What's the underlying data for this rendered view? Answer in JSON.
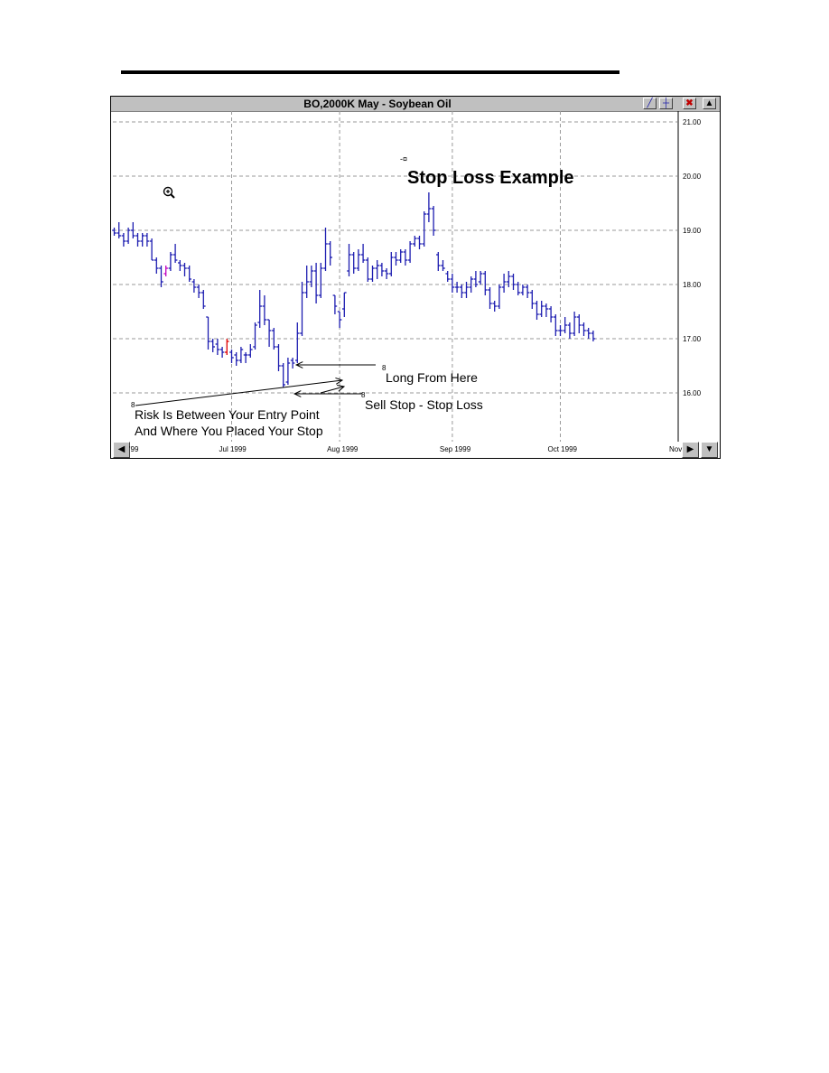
{
  "chart_data": {
    "type": "ohlc",
    "window_title": "BO,2000K  May - Soybean Oil",
    "title": "Stop Loss Example",
    "xlabel": "",
    "ylabel": "",
    "ylim": [
      15.1,
      21.2
    ],
    "y_ticks": [
      "21.00",
      "20.00",
      "19.00",
      "18.00",
      "17.00",
      "16.00"
    ],
    "x_ticks": [
      {
        "label": "'99",
        "bar": 0
      },
      {
        "label": "Jul 1999",
        "bar": 25
      },
      {
        "label": "Aug 1999",
        "bar": 48
      },
      {
        "label": "Sep 1999",
        "bar": 72
      },
      {
        "label": "Oct 1999",
        "bar": 95
      },
      {
        "label": "Nov",
        "bar": 119
      }
    ],
    "grid": true,
    "series": [
      {
        "bars": [
          [
            19.0,
            19.05,
            18.9,
            18.95
          ],
          [
            18.95,
            19.15,
            18.85,
            18.9
          ],
          [
            18.9,
            18.95,
            18.7,
            18.8
          ],
          [
            18.8,
            19.05,
            18.75,
            19.0
          ],
          [
            19.0,
            19.15,
            18.85,
            18.9
          ],
          [
            18.9,
            18.95,
            18.7,
            18.8
          ],
          [
            18.8,
            18.95,
            18.7,
            18.9
          ],
          [
            18.9,
            18.95,
            18.7,
            18.8
          ],
          [
            18.8,
            18.85,
            18.45,
            18.45
          ],
          [
            18.45,
            18.5,
            18.2,
            18.3
          ],
          [
            18.3,
            18.35,
            17.95,
            18.05
          ],
          [
            18.2,
            18.35,
            18.15,
            18.3
          ],
          [
            18.3,
            18.6,
            18.25,
            18.55
          ],
          [
            18.55,
            18.75,
            18.4,
            18.45
          ],
          [
            18.4,
            18.45,
            18.25,
            18.35
          ],
          [
            18.35,
            18.4,
            18.15,
            18.3
          ],
          [
            18.3,
            18.35,
            18.05,
            18.1
          ],
          [
            18.05,
            18.1,
            17.85,
            17.95
          ],
          [
            17.95,
            18.0,
            17.75,
            17.85
          ],
          [
            17.85,
            17.9,
            17.55,
            17.6
          ],
          [
            17.4,
            17.4,
            16.8,
            16.95
          ],
          [
            16.95,
            17.0,
            16.75,
            16.85
          ],
          [
            16.9,
            17.0,
            16.7,
            16.8
          ],
          [
            16.8,
            16.85,
            16.65,
            16.75
          ],
          [
            16.75,
            17.0,
            16.7,
            16.95
          ],
          [
            16.75,
            16.8,
            16.55,
            16.65
          ],
          [
            16.7,
            16.75,
            16.5,
            16.6
          ],
          [
            16.6,
            16.85,
            16.55,
            16.8
          ],
          [
            16.7,
            16.75,
            16.55,
            16.7
          ],
          [
            16.7,
            16.9,
            16.65,
            16.8
          ],
          [
            16.85,
            17.3,
            16.8,
            17.25
          ],
          [
            17.3,
            17.9,
            17.2,
            17.6
          ],
          [
            17.6,
            17.8,
            17.25,
            17.35
          ],
          [
            17.35,
            17.35,
            16.85,
            17.15
          ],
          [
            17.15,
            17.2,
            16.8,
            16.85
          ],
          [
            16.85,
            16.9,
            16.4,
            16.5
          ],
          [
            16.5,
            16.55,
            16.1,
            16.15
          ],
          [
            16.2,
            16.65,
            16.15,
            16.55
          ],
          [
            16.6,
            16.65,
            16.45,
            16.55
          ],
          [
            16.6,
            17.3,
            16.55,
            17.1
          ],
          [
            17.1,
            18.05,
            17.05,
            17.85
          ],
          [
            17.85,
            18.35,
            17.75,
            18.05
          ],
          [
            18.05,
            18.35,
            17.95,
            18.25
          ],
          [
            18.25,
            18.4,
            17.65,
            17.8
          ],
          [
            17.8,
            18.4,
            17.75,
            18.3
          ],
          [
            18.3,
            19.05,
            18.25,
            18.75
          ],
          [
            18.75,
            18.8,
            18.35,
            18.5
          ],
          [
            17.8,
            17.8,
            17.45,
            17.6
          ],
          [
            17.5,
            17.5,
            17.2,
            17.35
          ],
          [
            17.55,
            17.85,
            17.4,
            17.85
          ],
          [
            18.25,
            18.75,
            18.15,
            18.55
          ],
          [
            18.55,
            18.6,
            18.2,
            18.3
          ],
          [
            18.3,
            18.65,
            18.25,
            18.55
          ],
          [
            18.55,
            18.75,
            18.4,
            18.45
          ],
          [
            18.45,
            18.5,
            18.05,
            18.1
          ],
          [
            18.1,
            18.35,
            18.05,
            18.3
          ],
          [
            18.3,
            18.45,
            18.1,
            18.35
          ],
          [
            18.35,
            18.4,
            18.15,
            18.25
          ],
          [
            18.25,
            18.3,
            18.1,
            18.2
          ],
          [
            18.2,
            18.6,
            18.15,
            18.5
          ],
          [
            18.5,
            18.6,
            18.35,
            18.45
          ],
          [
            18.45,
            18.65,
            18.4,
            18.6
          ],
          [
            18.6,
            18.65,
            18.35,
            18.45
          ],
          [
            18.45,
            18.8,
            18.4,
            18.75
          ],
          [
            18.75,
            18.9,
            18.7,
            18.85
          ],
          [
            18.85,
            18.9,
            18.65,
            18.75
          ],
          [
            18.75,
            19.35,
            18.7,
            19.3
          ],
          [
            19.3,
            19.7,
            19.15,
            19.4
          ],
          [
            19.4,
            19.45,
            18.9,
            19.0
          ],
          [
            18.55,
            18.6,
            18.25,
            18.35
          ],
          [
            18.35,
            18.45,
            18.25,
            18.3
          ],
          [
            18.2,
            18.25,
            18.05,
            18.1
          ],
          [
            18.1,
            18.2,
            17.85,
            17.95
          ],
          [
            17.95,
            18.05,
            17.85,
            17.95
          ],
          [
            17.95,
            18.0,
            17.75,
            17.85
          ],
          [
            17.85,
            18.05,
            17.75,
            17.95
          ],
          [
            17.95,
            18.15,
            17.85,
            18.1
          ],
          [
            18.1,
            18.25,
            17.95,
            18.0
          ],
          [
            18.05,
            18.25,
            18.0,
            18.2
          ],
          [
            18.2,
            18.25,
            17.8,
            17.9
          ],
          [
            17.9,
            17.95,
            17.55,
            17.65
          ],
          [
            17.65,
            17.7,
            17.5,
            17.6
          ],
          [
            17.6,
            18.0,
            17.55,
            17.95
          ],
          [
            17.95,
            18.2,
            17.85,
            18.05
          ],
          [
            18.05,
            18.25,
            17.95,
            18.15
          ],
          [
            18.15,
            18.2,
            17.9,
            18.0
          ],
          [
            18.0,
            18.05,
            17.8,
            17.85
          ],
          [
            17.85,
            18.0,
            17.8,
            17.95
          ],
          [
            17.95,
            18.0,
            17.75,
            17.85
          ],
          [
            17.85,
            17.9,
            17.55,
            17.65
          ],
          [
            17.65,
            17.7,
            17.35,
            17.45
          ],
          [
            17.45,
            17.7,
            17.4,
            17.6
          ],
          [
            17.6,
            17.65,
            17.4,
            17.55
          ],
          [
            17.55,
            17.6,
            17.3,
            17.4
          ],
          [
            17.4,
            17.45,
            17.05,
            17.15
          ],
          [
            17.15,
            17.25,
            17.05,
            17.15
          ],
          [
            17.15,
            17.4,
            17.1,
            17.25
          ],
          [
            17.25,
            17.3,
            17.0,
            17.1
          ],
          [
            17.1,
            17.5,
            17.05,
            17.4
          ],
          [
            17.4,
            17.45,
            17.1,
            17.25
          ],
          [
            17.25,
            17.3,
            17.05,
            17.15
          ],
          [
            17.15,
            17.2,
            17.0,
            17.1
          ],
          [
            17.1,
            17.15,
            16.95,
            17.0
          ]
        ],
        "highlight_bars": [
          {
            "index": 11,
            "color": "#c000c0"
          },
          {
            "index": 24,
            "color": "#e00000"
          }
        ]
      }
    ],
    "annotations": [
      {
        "id": "long",
        "text": "Long From Here",
        "price": 16.6,
        "bar": 38
      },
      {
        "id": "stop",
        "text": "Sell Stop - Stop Loss",
        "price": 16.05,
        "bar": 38
      },
      {
        "id": "risk",
        "lines": [
          "Risk Is Between Your Entry Point",
          "And Where You Placed Your Stop"
        ]
      }
    ],
    "colors": {
      "bars": "#1c1cb0",
      "grid": "#9a9a9a",
      "window_chrome": "#c0c0c0"
    }
  }
}
